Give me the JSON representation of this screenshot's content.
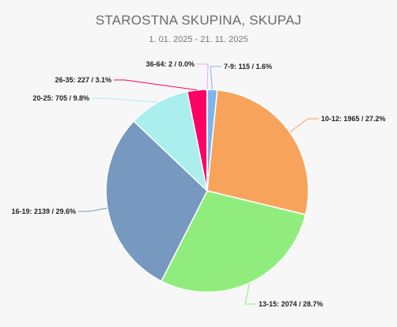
{
  "chart_data": {
    "type": "pie",
    "title": "STAROSTNA SKUPINA, SKUPAJ",
    "subtitle": "1. 01. 2025 - 21. 11. 2025",
    "slices": [
      {
        "label": "7-9",
        "value": 115,
        "percent": "1.6%",
        "color": "#7cb5ec"
      },
      {
        "label": "10-12",
        "value": 1965,
        "percent": "27.2%",
        "color": "#f7a35c"
      },
      {
        "label": "13-15",
        "value": 2074,
        "percent": "28.7%",
        "color": "#90ed7d"
      },
      {
        "label": "16-19",
        "value": 2139,
        "percent": "29.6%",
        "color": "#7798bf"
      },
      {
        "label": "20-25",
        "value": 705,
        "percent": "9.8%",
        "color": "#aaeeee"
      },
      {
        "label": "26-35",
        "value": 227,
        "percent": "3.1%",
        "color": "#ff0066"
      },
      {
        "label": "36-64",
        "value": 2,
        "percent": "0.0%",
        "color": "#eeaaee"
      }
    ]
  }
}
